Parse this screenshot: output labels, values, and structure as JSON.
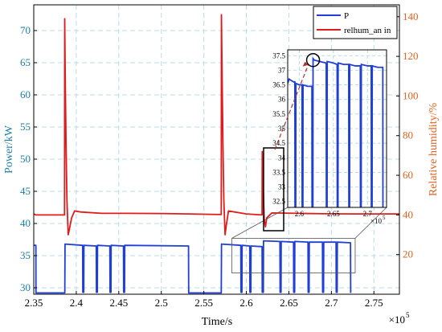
{
  "chart_data": {
    "type": "line",
    "xlabel": "Time/s",
    "ylabel_left": "Power/kW",
    "ylabel_right": "Relative humidity/%",
    "x_exponent_label": "×10",
    "x_exponent_power": "5",
    "xlim": [
      2.35,
      2.78
    ],
    "ylim_left": [
      29,
      74
    ],
    "ylim_right": [
      0,
      146
    ],
    "xticks": [
      "2.35",
      "2.4",
      "2.45",
      "2.5",
      "2.55",
      "2.6",
      "2.65",
      "2.7",
      "2.75"
    ],
    "xtick_values": [
      2.35,
      2.4,
      2.45,
      2.5,
      2.55,
      2.6,
      2.65,
      2.7,
      2.75
    ],
    "yticks_left": [
      "30",
      "35",
      "40",
      "45",
      "50",
      "55",
      "60",
      "65",
      "70"
    ],
    "ytick_values_left": [
      30,
      35,
      40,
      45,
      50,
      55,
      60,
      65,
      70
    ],
    "yticks_right": [
      "20",
      "40",
      "60",
      "80",
      "100",
      "120",
      "140"
    ],
    "ytick_values_right": [
      20,
      40,
      60,
      80,
      100,
      120,
      140
    ],
    "grid": true,
    "legend_position": "top-right",
    "series": [
      {
        "name": "P",
        "color": "#1f3fd6",
        "axis": "left",
        "points": [
          [
            2.35,
            36.6
          ],
          [
            2.3525,
            36.6
          ],
          [
            2.3526,
            29.2
          ],
          [
            2.3865,
            29.2
          ],
          [
            2.3868,
            36.8
          ],
          [
            2.4075,
            36.6
          ],
          [
            2.4077,
            29.3
          ],
          [
            2.4088,
            29.3
          ],
          [
            2.409,
            36.6
          ],
          [
            2.4235,
            36.5
          ],
          [
            2.4237,
            29.3
          ],
          [
            2.4248,
            29.3
          ],
          [
            2.425,
            36.6
          ],
          [
            2.4395,
            36.5
          ],
          [
            2.4397,
            29.3
          ],
          [
            2.4408,
            29.3
          ],
          [
            2.441,
            36.6
          ],
          [
            2.4555,
            36.5
          ],
          [
            2.4557,
            29.3
          ],
          [
            2.4568,
            29.3
          ],
          [
            2.457,
            36.6
          ],
          [
            2.532,
            36.5
          ],
          [
            2.5322,
            29.2
          ],
          [
            2.5705,
            29.2
          ],
          [
            2.5708,
            36.8
          ],
          [
            2.5935,
            36.6
          ],
          [
            2.5937,
            29.3
          ],
          [
            2.5948,
            29.3
          ],
          [
            2.595,
            36.6
          ],
          [
            2.604,
            36.5
          ],
          [
            2.6042,
            29.3
          ],
          [
            2.6053,
            29.3
          ],
          [
            2.6055,
            36.5
          ],
          [
            2.6185,
            36.4
          ],
          [
            2.6187,
            29.3
          ],
          [
            2.62,
            29.3
          ],
          [
            2.6202,
            37.3
          ],
          [
            2.6395,
            37.2
          ],
          [
            2.6397,
            29.3
          ],
          [
            2.6408,
            29.3
          ],
          [
            2.641,
            37.2
          ],
          [
            2.6555,
            37.1
          ],
          [
            2.6557,
            29.3
          ],
          [
            2.6568,
            29.3
          ],
          [
            2.657,
            37.2
          ],
          [
            2.6725,
            37.1
          ],
          [
            2.6727,
            29.3
          ],
          [
            2.6738,
            29.3
          ],
          [
            2.674,
            37.1
          ],
          [
            2.6895,
            37.1
          ],
          [
            2.6897,
            29.3
          ],
          [
            2.6908,
            29.3
          ],
          [
            2.691,
            37.1
          ],
          [
            2.7055,
            37.1
          ],
          [
            2.7057,
            29.3
          ],
          [
            2.7068,
            29.3
          ],
          [
            2.707,
            37.1
          ],
          [
            2.7225,
            37.0
          ],
          [
            2.7227,
            29.2
          ]
        ]
      },
      {
        "name": "relhum_an in",
        "color": "#e01b1b",
        "axis": "right",
        "points": [
          [
            2.35,
            40.5
          ],
          [
            2.3525,
            40.0
          ],
          [
            2.3862,
            40.0
          ],
          [
            2.3864,
            139.0
          ],
          [
            2.387,
            110.0
          ],
          [
            2.388,
            75.0
          ],
          [
            2.389,
            48.0
          ],
          [
            2.3905,
            30.0
          ],
          [
            2.392,
            33.0
          ],
          [
            2.3945,
            38.5
          ],
          [
            2.398,
            42.0
          ],
          [
            2.405,
            41.5
          ],
          [
            2.43,
            40.8
          ],
          [
            2.46,
            40.8
          ],
          [
            2.5,
            40.7
          ],
          [
            2.532,
            40.5
          ],
          [
            2.5705,
            40.2
          ],
          [
            2.5707,
            141.0
          ],
          [
            2.5715,
            110.0
          ],
          [
            2.5725,
            75.0
          ],
          [
            2.5735,
            48.0
          ],
          [
            2.575,
            30.0
          ],
          [
            2.5765,
            35.0
          ],
          [
            2.579,
            42.0
          ],
          [
            2.59,
            41.2
          ],
          [
            2.6,
            40.5
          ],
          [
            2.6185,
            40.0
          ],
          [
            2.6187,
            72.0
          ],
          [
            2.6195,
            58.0
          ],
          [
            2.621,
            38.0
          ],
          [
            2.6225,
            34.0
          ],
          [
            2.624,
            38.5
          ],
          [
            2.63,
            41.0
          ],
          [
            2.66,
            40.8
          ],
          [
            2.69,
            40.6
          ],
          [
            2.725,
            40.5
          ],
          [
            2.78,
            40.5
          ]
        ]
      }
    ],
    "inset": {
      "xlim": [
        2.583,
        2.728
      ],
      "ylim": [
        32.3,
        37.7
      ],
      "xticks": [
        "2.6",
        "2.65",
        "2.7"
      ],
      "xtick_values": [
        2.6,
        2.65,
        2.7
      ],
      "x_exponent_label": "×10",
      "x_exponent_power": "5",
      "yticks": [
        "32.5",
        "33",
        "33.5",
        "34",
        "34.5",
        "35",
        "35.5",
        "36",
        "36.5",
        "37",
        "37.5"
      ],
      "ytick_values": [
        32.5,
        33,
        33.5,
        34,
        34.5,
        35,
        35.5,
        36,
        36.5,
        37,
        37.5
      ],
      "points": [
        [
          2.583,
          36.55
        ],
        [
          2.585,
          36.7
        ],
        [
          2.588,
          36.65
        ],
        [
          2.592,
          36.6
        ],
        [
          2.5935,
          36.6
        ],
        [
          2.5937,
          32.3
        ],
        [
          2.5948,
          32.3
        ],
        [
          2.595,
          36.55
        ],
        [
          2.6,
          36.5
        ],
        [
          2.604,
          36.5
        ],
        [
          2.6042,
          32.3
        ],
        [
          2.6053,
          32.3
        ],
        [
          2.6055,
          36.5
        ],
        [
          2.612,
          36.45
        ],
        [
          2.6185,
          36.45
        ],
        [
          2.6187,
          32.3
        ],
        [
          2.62,
          32.3
        ],
        [
          2.6202,
          37.4
        ],
        [
          2.622,
          37.35
        ],
        [
          2.63,
          37.3
        ],
        [
          2.6395,
          37.25
        ],
        [
          2.6397,
          32.3
        ],
        [
          2.6408,
          32.3
        ],
        [
          2.641,
          37.3
        ],
        [
          2.65,
          37.25
        ],
        [
          2.6555,
          37.2
        ],
        [
          2.6557,
          32.3
        ],
        [
          2.6568,
          32.3
        ],
        [
          2.657,
          37.25
        ],
        [
          2.665,
          37.2
        ],
        [
          2.6725,
          37.2
        ],
        [
          2.6727,
          32.3
        ],
        [
          2.6738,
          32.3
        ],
        [
          2.674,
          37.2
        ],
        [
          2.682,
          37.15
        ],
        [
          2.6895,
          37.15
        ],
        [
          2.6897,
          32.3
        ],
        [
          2.6908,
          32.3
        ],
        [
          2.691,
          37.2
        ],
        [
          2.7,
          37.15
        ],
        [
          2.7055,
          37.15
        ],
        [
          2.7057,
          32.3
        ],
        [
          2.7068,
          32.3
        ],
        [
          2.707,
          37.15
        ],
        [
          2.715,
          37.1
        ],
        [
          2.7225,
          37.1
        ],
        [
          2.7227,
          32.3
        ]
      ],
      "highlight_circle": {
        "x": 2.6202,
        "y": 37.35
      }
    },
    "zoom_region": {
      "x": [
        2.583,
        2.728
      ],
      "y": [
        32.3,
        37.7
      ]
    }
  }
}
